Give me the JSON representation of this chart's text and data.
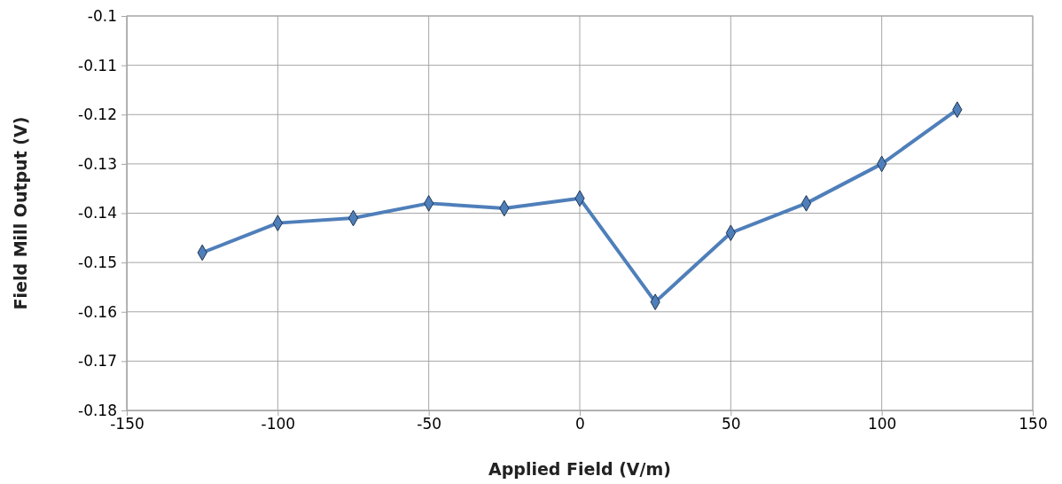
{
  "chart_data": {
    "type": "line",
    "xlabel": "Applied Field (V/m)",
    "ylabel": "Field Mill Output (V)",
    "x": [
      -125,
      -100,
      -75,
      -50,
      -25,
      0,
      25,
      50,
      75,
      100,
      125
    ],
    "series": [
      {
        "color": "#4f7fba",
        "values": [
          -0.148,
          -0.142,
          -0.141,
          -0.138,
          -0.139,
          -0.137,
          -0.158,
          -0.144,
          -0.138,
          -0.13,
          -0.119
        ]
      }
    ],
    "xlim": [
      -150,
      150
    ],
    "xticks": [
      -150,
      -100,
      -50,
      0,
      50,
      100,
      150
    ],
    "ylim": [
      -0.18,
      -0.1
    ],
    "yticks": [
      -0.18,
      -0.17,
      -0.16,
      -0.15,
      -0.14,
      -0.13,
      -0.12,
      -0.11,
      -0.1
    ],
    "grid": true,
    "marker": "diamond",
    "line_style": "solid"
  }
}
